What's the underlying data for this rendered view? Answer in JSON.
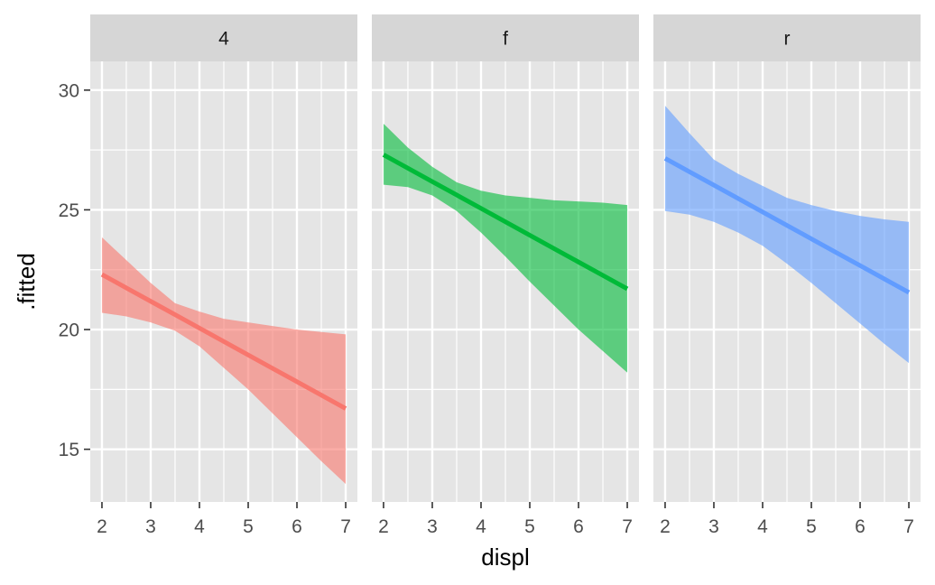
{
  "chart_data": {
    "type": "line",
    "layout": "faceted",
    "xlabel": "displ",
    "ylabel": ".fitted",
    "xlim": [
      1.76,
      7.24
    ],
    "ylim": [
      12.8,
      31.2
    ],
    "x_ticks": [
      2,
      3,
      4,
      5,
      6,
      7
    ],
    "y_ticks": [
      15,
      20,
      25,
      30
    ],
    "grid": true,
    "colors": {
      "panel_bg": "#e5e5e5",
      "strip_bg": "#d6d6d6",
      "grid": "#ffffff"
    },
    "facets": [
      {
        "label": "4",
        "color": "#f8766d",
        "x": [
          2,
          2.5,
          3,
          3.5,
          4,
          4.5,
          5,
          5.5,
          6,
          6.5,
          7
        ],
        "fitted": [
          22.3,
          21.74,
          21.18,
          20.62,
          20.06,
          19.5,
          18.94,
          18.38,
          17.82,
          17.26,
          16.7
        ],
        "lower": [
          20.7,
          20.55,
          20.3,
          19.95,
          19.3,
          18.4,
          17.5,
          16.5,
          15.5,
          14.5,
          13.55
        ],
        "upper": [
          23.85,
          22.9,
          21.95,
          21.1,
          20.75,
          20.45,
          20.3,
          20.15,
          20.0,
          19.9,
          19.8
        ]
      },
      {
        "label": "f",
        "color": "#00ba38",
        "x": [
          2,
          2.5,
          3,
          3.5,
          4,
          4.5,
          5,
          5.5,
          6,
          6.5,
          7
        ],
        "fitted": [
          27.3,
          26.74,
          26.18,
          25.62,
          25.06,
          24.5,
          23.94,
          23.38,
          22.82,
          22.26,
          21.7
        ],
        "lower": [
          26.05,
          25.95,
          25.6,
          24.95,
          24.05,
          23.05,
          22.0,
          21.0,
          20.0,
          19.1,
          18.2
        ],
        "upper": [
          28.6,
          27.6,
          26.8,
          26.15,
          25.8,
          25.6,
          25.5,
          25.4,
          25.35,
          25.3,
          25.2
        ]
      },
      {
        "label": "r",
        "color": "#619cff",
        "x": [
          2,
          2.5,
          3,
          3.5,
          4,
          4.5,
          5,
          5.5,
          6,
          6.5,
          7
        ],
        "fitted": [
          27.15,
          26.59,
          26.03,
          25.47,
          24.91,
          24.35,
          23.79,
          23.23,
          22.67,
          22.11,
          21.55
        ],
        "lower": [
          24.95,
          24.8,
          24.5,
          24.05,
          23.5,
          22.75,
          21.95,
          21.1,
          20.25,
          19.4,
          18.6
        ],
        "upper": [
          29.35,
          28.2,
          27.1,
          26.5,
          26.0,
          25.5,
          25.2,
          24.95,
          24.75,
          24.6,
          24.5
        ]
      }
    ]
  }
}
